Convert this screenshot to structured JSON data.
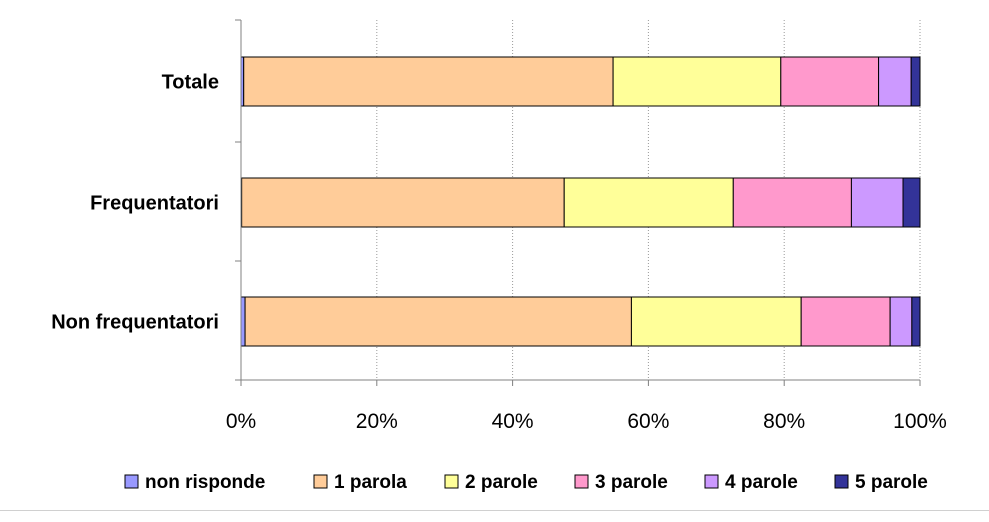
{
  "chart_data": {
    "type": "bar",
    "orientation": "horizontal",
    "stacked": "percent",
    "categories": [
      "Totale",
      "Frequentatori",
      "Non frequentatori"
    ],
    "series": [
      {
        "name": "non risponde",
        "color": "#9999ff",
        "values": [
          0.4,
          0.1,
          0.6
        ]
      },
      {
        "name": "1 parola",
        "color": "#ffcc99",
        "values": [
          54.4,
          47.5,
          56.9
        ]
      },
      {
        "name": "2 parole",
        "color": "#ffff99",
        "values": [
          24.7,
          24.9,
          25.0
        ]
      },
      {
        "name": "3 parole",
        "color": "#ff99cc",
        "values": [
          14.4,
          17.4,
          13.1
        ]
      },
      {
        "name": "4 parole",
        "color": "#cc99ff",
        "values": [
          4.8,
          7.6,
          3.2
        ]
      },
      {
        "name": "5 parole",
        "color": "#333399",
        "values": [
          1.3,
          2.5,
          1.2
        ]
      }
    ],
    "x_ticks": [
      "0%",
      "20%",
      "40%",
      "60%",
      "80%",
      "100%"
    ],
    "xlim": [
      0,
      100
    ],
    "grid": "vertical-dotted",
    "legend": "bottom"
  }
}
